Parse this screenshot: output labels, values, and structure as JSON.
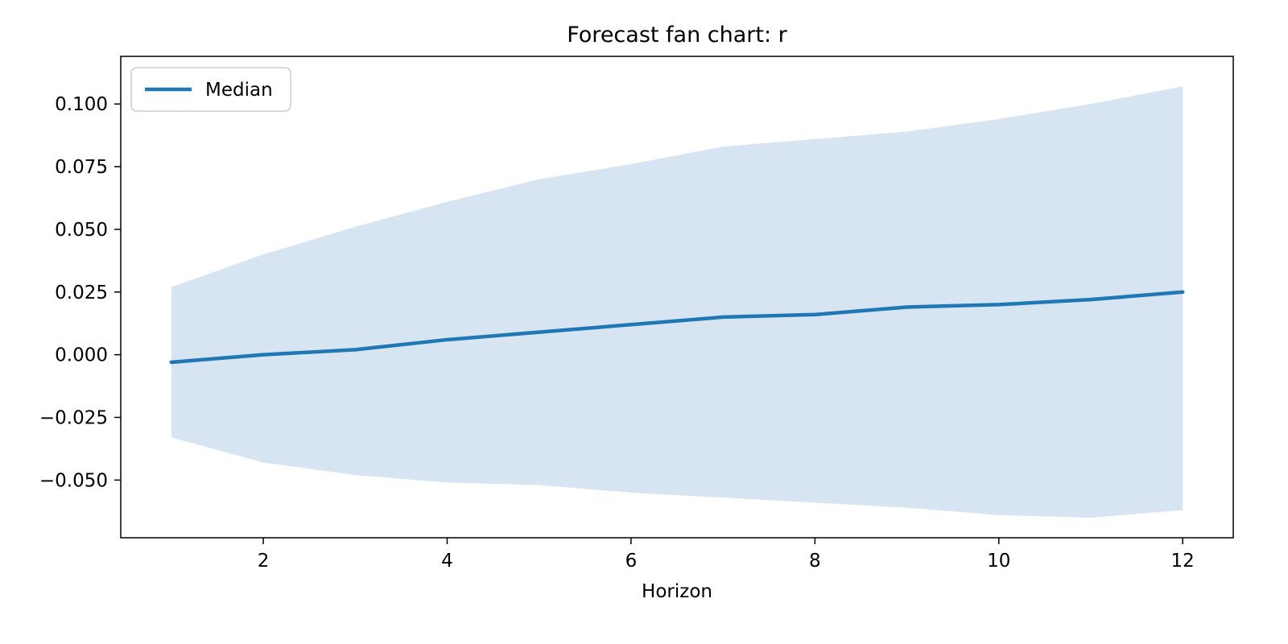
{
  "chart_data": {
    "type": "line",
    "title": "Forecast fan chart: r",
    "xlabel": "Horizon",
    "ylabel": "",
    "x": [
      1,
      2,
      3,
      4,
      5,
      6,
      7,
      8,
      9,
      10,
      11,
      12
    ],
    "series": [
      {
        "name": "Median",
        "values": [
          -0.003,
          0.0,
          0.002,
          0.006,
          0.009,
          0.012,
          0.015,
          0.016,
          0.019,
          0.02,
          0.022,
          0.025
        ]
      }
    ],
    "band": {
      "name": "forecast-fan-interval",
      "upper": [
        0.027,
        0.04,
        0.051,
        0.061,
        0.07,
        0.076,
        0.083,
        0.086,
        0.089,
        0.094,
        0.1,
        0.107
      ],
      "lower": [
        -0.033,
        -0.043,
        -0.048,
        -0.051,
        -0.052,
        -0.055,
        -0.057,
        -0.059,
        -0.061,
        -0.064,
        -0.065,
        -0.062
      ]
    },
    "xticks": [
      2,
      4,
      6,
      8,
      10,
      12
    ],
    "xtick_labels": [
      "2",
      "4",
      "6",
      "8",
      "10",
      "12"
    ],
    "yticks": [
      0.1,
      0.075,
      0.05,
      0.025,
      0.0,
      -0.025,
      -0.05
    ],
    "ytick_labels": [
      "0.100",
      "0.075",
      "0.050",
      "0.025",
      "0.000",
      "−0.025",
      "−0.050"
    ],
    "xlim": [
      0.45,
      12.55
    ],
    "ylim": [
      -0.073,
      0.119
    ],
    "grid": false,
    "legend": {
      "label": "Median",
      "position": "upper left"
    },
    "colors": {
      "median_line": "#1f77b4",
      "band_fill": "#d7e5f2",
      "axes_edge": "#000000",
      "legend_border": "#cccccc"
    }
  }
}
